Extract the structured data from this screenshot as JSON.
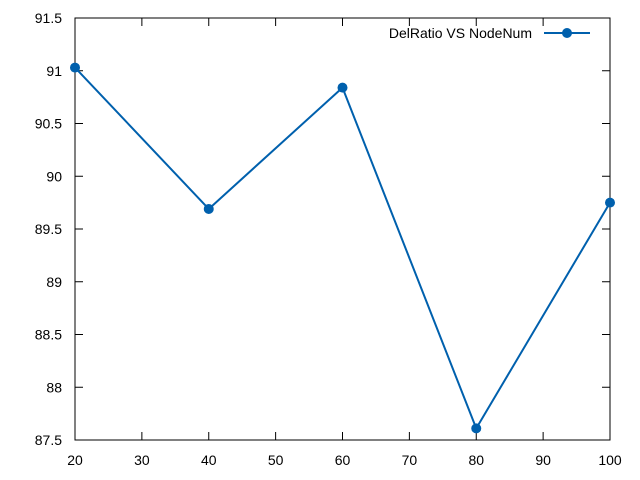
{
  "chart_data": {
    "type": "line",
    "title": "",
    "xlabel": "",
    "ylabel": "",
    "xlim": [
      20,
      100
    ],
    "ylim": [
      87.5,
      91.5
    ],
    "xticks": [
      "20",
      "30",
      "40",
      "50",
      "60",
      "70",
      "80",
      "90",
      "100"
    ],
    "yticks": [
      "87.5",
      "88",
      "88.5",
      "89",
      "89.5",
      "90",
      "90.5",
      "91",
      "91.5"
    ],
    "grid": false,
    "legend_position": "top-right",
    "series": [
      {
        "name": "DelRatio VS NodeNum",
        "color": "#0060ad",
        "marker": "circle",
        "x": [
          20,
          40,
          60,
          80,
          100
        ],
        "y": [
          91.03,
          89.69,
          90.84,
          87.61,
          89.75
        ]
      }
    ]
  }
}
